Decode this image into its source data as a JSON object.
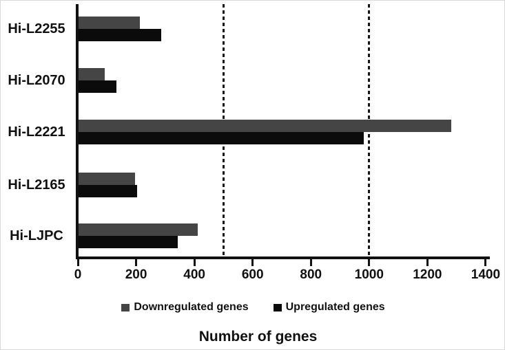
{
  "chart_data": {
    "type": "bar",
    "orientation": "horizontal",
    "title": "",
    "xlabel": "Number of genes",
    "ylabel": "",
    "categories": [
      "Hi-L2255",
      "Hi-L2070",
      "Hi-L2221",
      "Hi-L2165",
      "Hi-LJPC"
    ],
    "series": [
      {
        "name": "Downregulated genes",
        "color": "#454545",
        "values": [
          210,
          90,
          1280,
          195,
          410
        ]
      },
      {
        "name": "Upregulated genes",
        "color": "#0b0b0b",
        "values": [
          285,
          130,
          980,
          200,
          340
        ]
      }
    ],
    "xlim": [
      0,
      1400
    ],
    "xticks": [
      0,
      200,
      400,
      600,
      800,
      1000,
      1200,
      1400
    ],
    "reference_lines_x": [
      500,
      1000
    ],
    "grid": false,
    "legend_position": "bottom",
    "axis_color": "#111111",
    "text_color": "#111111"
  }
}
